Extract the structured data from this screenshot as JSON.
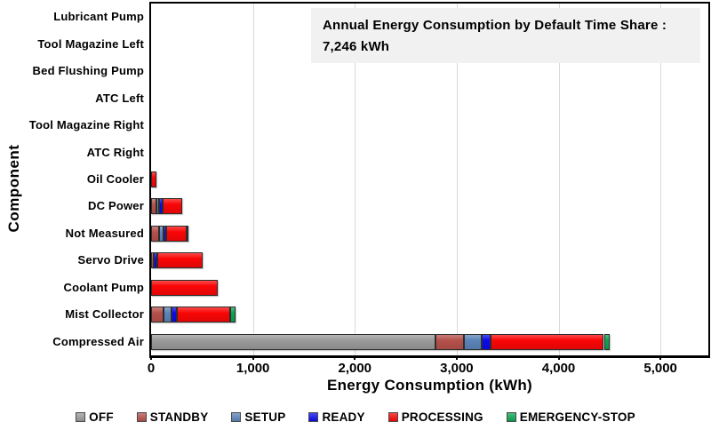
{
  "title_box": {
    "line1": "Annual Energy Consumption by Default Time Share :",
    "line2": "7,246 kWh"
  },
  "chart_data": {
    "type": "bar",
    "orientation": "horizontal",
    "stacked": true,
    "title": "Annual Energy Consumption by Default Time Share : 7,246 kWh",
    "total_label": "7,246 kWh",
    "xlabel": "Energy Consumption (kWh)",
    "ylabel": "Component",
    "xlim": [
      0,
      5470
    ],
    "x_ticks": [
      0,
      1000,
      2000,
      3000,
      4000,
      5000
    ],
    "x_tick_labels": [
      "0",
      "1,000",
      "2,000",
      "3,000",
      "4,000",
      "5,000"
    ],
    "grid": "vertical-light-gray",
    "legend_position": "bottom",
    "categories": [
      "Lubricant Pump",
      "Tool Magazine Left",
      "Bed Flushing Pump",
      "ATC Left",
      "Tool Magazine Right",
      "ATC Right",
      "Oil Cooler",
      "DC Power",
      "Not Measured",
      "Servo Drive",
      "Coolant Pump",
      "Mist Collector",
      "Compressed Air"
    ],
    "series": [
      {
        "name": "OFF",
        "color": "#9a9a9a",
        "values": [
          0,
          0,
          0,
          0,
          0,
          0,
          0,
          0,
          0,
          0,
          0,
          0,
          2790
        ]
      },
      {
        "name": "STANDBY",
        "color": "#b5514b",
        "values": [
          0,
          0,
          0,
          0,
          0,
          0,
          0,
          55,
          80,
          25,
          0,
          120,
          280
        ]
      },
      {
        "name": "SETUP",
        "color": "#5b84b8",
        "values": [
          0,
          0,
          0,
          0,
          0,
          0,
          0,
          25,
          40,
          0,
          0,
          85,
          175
        ]
      },
      {
        "name": "READY",
        "color": "#0a0aee",
        "values": [
          0,
          0,
          0,
          0,
          0,
          0,
          0,
          30,
          25,
          35,
          0,
          50,
          90
        ]
      },
      {
        "name": "PROCESSING",
        "color": "#f90606",
        "values": [
          0,
          0,
          0,
          0,
          0,
          0,
          50,
          195,
          205,
          450,
          650,
          525,
          1110
        ]
      },
      {
        "name": "EMERGENCY-STOP",
        "color": "#0ba552",
        "values": [
          0,
          0,
          0,
          0,
          0,
          0,
          0,
          0,
          20,
          0,
          0,
          45,
          60
        ]
      }
    ]
  }
}
